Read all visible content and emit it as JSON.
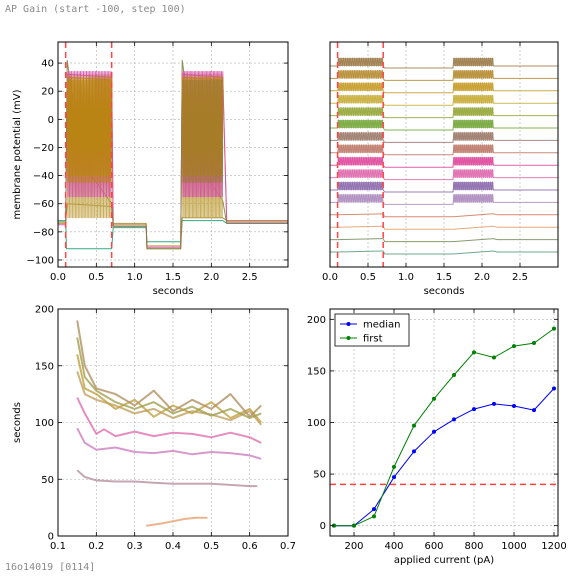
{
  "page_header": "AP Gain (start -100, step 100)",
  "page_footer": "16o14019 [0114]",
  "chart_data": [
    {
      "type": "line",
      "panel": "top-left",
      "xlabel": "seconds",
      "ylabel": "membrane potential (mV)",
      "xlim": [
        0,
        3.0
      ],
      "ylim": [
        -105,
        55
      ],
      "xticks": [
        0.0,
        0.5,
        1.0,
        1.5,
        2.0,
        2.5
      ],
      "xticklabels": [
        "0.0",
        "0.5",
        "1.0",
        "1.5",
        "2.0",
        "2.5"
      ],
      "yticks": [
        40,
        20,
        0,
        -20,
        -40,
        -60,
        -80,
        -100
      ],
      "yticklabels": [
        "40",
        "20",
        "0",
        "−20",
        "−40",
        "−60",
        "−80",
        "−100"
      ],
      "grid": true,
      "vlines": [
        0.1,
        0.7
      ],
      "vline_color": "#ff4444",
      "series": [
        {
          "color": "#1a9e77",
          "values": [
            [
              0,
              -72
            ],
            [
              0.1,
              -72
            ],
            [
              0.11,
              -92
            ],
            [
              0.7,
              -92
            ],
            [
              0.72,
              -77
            ],
            [
              1.15,
              -77
            ],
            [
              1.16,
              -87
            ],
            [
              1.6,
              -87
            ],
            [
              1.62,
              -72
            ],
            [
              2.15,
              -72
            ],
            [
              2.2,
              -74
            ],
            [
              3.0,
              -74
            ]
          ]
        },
        {
          "color": "#9a8a3a",
          "values": [
            [
              0,
              -73
            ],
            [
              0.1,
              -73
            ],
            [
              0.12,
              -60
            ],
            [
              0.7,
              -62
            ],
            [
              0.72,
              -74
            ],
            [
              1.15,
              -74
            ],
            [
              1.16,
              -92
            ],
            [
              1.6,
              -92
            ],
            [
              1.62,
              -70
            ],
            [
              2.15,
              -70
            ],
            [
              2.2,
              -72
            ],
            [
              3.0,
              -72
            ]
          ]
        },
        {
          "color": "#c08a2a",
          "values": [
            [
              0,
              -74
            ],
            [
              0.1,
              -74
            ],
            [
              0.12,
              30
            ],
            [
              0.7,
              28
            ],
            [
              0.72,
              -75
            ],
            [
              1.15,
              -75
            ],
            [
              1.16,
              -90
            ],
            [
              1.6,
              -90
            ],
            [
              1.62,
              30
            ],
            [
              2.15,
              28
            ],
            [
              2.2,
              -72
            ],
            [
              3.0,
              -72
            ]
          ]
        },
        {
          "color": "#d44fa8",
          "values": [
            [
              0,
              -75
            ],
            [
              0.1,
              -75
            ],
            [
              0.12,
              32
            ],
            [
              0.7,
              30
            ],
            [
              0.72,
              -76
            ],
            [
              1.15,
              -76
            ],
            [
              1.16,
              -91
            ],
            [
              1.6,
              -91
            ],
            [
              1.62,
              32
            ],
            [
              2.15,
              30
            ],
            [
              2.2,
              -73
            ],
            [
              3.0,
              -73
            ]
          ]
        },
        {
          "color": "#808040",
          "values": [
            [
              0,
              -73
            ],
            [
              0.1,
              -73
            ],
            [
              0.12,
              42
            ],
            [
              0.3,
              -30
            ],
            [
              0.7,
              -60
            ],
            [
              0.72,
              -76
            ],
            [
              1.15,
              -76
            ],
            [
              1.16,
              -92
            ],
            [
              1.6,
              -92
            ],
            [
              1.62,
              42
            ],
            [
              1.8,
              -30
            ],
            [
              2.15,
              -58
            ],
            [
              2.2,
              -74
            ],
            [
              3.0,
              -74
            ]
          ]
        }
      ]
    },
    {
      "type": "line",
      "panel": "top-right",
      "xlabel": "seconds",
      "xlim": [
        0,
        3.0
      ],
      "xticks": [
        0.0,
        0.5,
        1.0,
        1.5,
        2.0,
        2.5
      ],
      "xticklabels": [
        "0.0",
        "0.5",
        "1.0",
        "1.5",
        "2.0",
        "2.5"
      ],
      "grid": true,
      "vlines": [
        0.1,
        0.7
      ],
      "vline_color": "#ff4444",
      "trace_colors": [
        "#a08050",
        "#b8903a",
        "#c8a030",
        "#c9b040",
        "#9aaa40",
        "#7aaa40",
        "#a08070",
        "#c08070",
        "#e050a0",
        "#e070b0",
        "#9070b0",
        "#b090c0",
        "#d08060",
        "#e0a070",
        "#7a9060",
        "#60a080"
      ]
    },
    {
      "type": "line",
      "panel": "bottom-left",
      "ylabel": "seconds",
      "xlim": [
        0.1,
        0.7
      ],
      "ylim": [
        0,
        200
      ],
      "xticks": [
        0.1,
        0.2,
        0.3,
        0.4,
        0.5,
        0.6,
        0.7
      ],
      "xticklabels": [
        "0.1",
        "0.2",
        "0.3",
        "0.4",
        "0.5",
        "0.6",
        "0.7"
      ],
      "yticks": [
        0,
        50,
        100,
        150,
        200
      ],
      "yticklabels": [
        "0",
        "50",
        "100",
        "150",
        "200"
      ],
      "grid": true,
      "series": [
        {
          "color": "#e8a070",
          "values": [
            [
              0.33,
              9
            ],
            [
              0.37,
              11
            ],
            [
              0.4,
              13
            ],
            [
              0.43,
              15
            ],
            [
              0.46,
              16
            ],
            [
              0.49,
              16
            ]
          ]
        },
        {
          "color": "#b890a0",
          "values": [
            [
              0.15,
              58
            ],
            [
              0.17,
              52
            ],
            [
              0.2,
              49
            ],
            [
              0.25,
              48
            ],
            [
              0.3,
              48
            ],
            [
              0.35,
              47
            ],
            [
              0.4,
              46
            ],
            [
              0.45,
              46
            ],
            [
              0.5,
              46
            ],
            [
              0.55,
              45
            ],
            [
              0.6,
              44
            ],
            [
              0.62,
              44
            ]
          ]
        },
        {
          "color": "#cc80c0",
          "values": [
            [
              0.15,
              95
            ],
            [
              0.17,
              82
            ],
            [
              0.2,
              76
            ],
            [
              0.25,
              78
            ],
            [
              0.3,
              74
            ],
            [
              0.35,
              73
            ],
            [
              0.4,
              75
            ],
            [
              0.45,
              72
            ],
            [
              0.5,
              74
            ],
            [
              0.55,
              73
            ],
            [
              0.6,
              71
            ],
            [
              0.63,
              68
            ]
          ]
        },
        {
          "color": "#e070b0",
          "values": [
            [
              0.15,
              122
            ],
            [
              0.17,
              108
            ],
            [
              0.2,
              90
            ],
            [
              0.22,
              94
            ],
            [
              0.25,
              88
            ],
            [
              0.3,
              92
            ],
            [
              0.35,
              88
            ],
            [
              0.4,
              91
            ],
            [
              0.45,
              90
            ],
            [
              0.5,
              87
            ],
            [
              0.55,
              91
            ],
            [
              0.6,
              87
            ],
            [
              0.63,
              82
            ]
          ]
        },
        {
          "color": "#c0a060",
          "values": [
            [
              0.15,
              145
            ],
            [
              0.17,
              125
            ],
            [
              0.2,
              120
            ],
            [
              0.25,
              115
            ],
            [
              0.3,
              108
            ],
            [
              0.35,
              112
            ],
            [
              0.4,
              104
            ],
            [
              0.45,
              110
            ],
            [
              0.5,
              107
            ],
            [
              0.55,
              102
            ],
            [
              0.6,
              110
            ],
            [
              0.63,
              98
            ]
          ]
        },
        {
          "color": "#c0a040",
          "values": [
            [
              0.15,
              160
            ],
            [
              0.17,
              130
            ],
            [
              0.2,
              125
            ],
            [
              0.25,
              112
            ],
            [
              0.3,
              120
            ],
            [
              0.35,
              105
            ],
            [
              0.4,
              115
            ],
            [
              0.45,
              108
            ],
            [
              0.5,
              118
            ],
            [
              0.55,
              104
            ],
            [
              0.6,
              112
            ],
            [
              0.63,
              100
            ]
          ]
        },
        {
          "color": "#b09060",
          "values": [
            [
              0.15,
              190
            ],
            [
              0.17,
              150
            ],
            [
              0.2,
              130
            ],
            [
              0.25,
              125
            ],
            [
              0.3,
              115
            ],
            [
              0.35,
              128
            ],
            [
              0.4,
              110
            ],
            [
              0.45,
              120
            ],
            [
              0.5,
              112
            ],
            [
              0.55,
              125
            ],
            [
              0.6,
              105
            ],
            [
              0.63,
              115
            ]
          ]
        },
        {
          "color": "#a0a050",
          "values": [
            [
              0.15,
              175
            ],
            [
              0.17,
              140
            ],
            [
              0.2,
              128
            ],
            [
              0.25,
              118
            ],
            [
              0.3,
              112
            ],
            [
              0.35,
              118
            ],
            [
              0.4,
              108
            ],
            [
              0.45,
              114
            ],
            [
              0.5,
              106
            ],
            [
              0.55,
              112
            ],
            [
              0.6,
              104
            ],
            [
              0.63,
              108
            ]
          ]
        }
      ]
    },
    {
      "type": "line",
      "panel": "bottom-right",
      "xlabel": "applied current (pA)",
      "xlim": [
        80,
        1220
      ],
      "ylim": [
        -10,
        210
      ],
      "xticks": [
        200,
        400,
        600,
        800,
        1000,
        1200
      ],
      "xticklabels": [
        "200",
        "400",
        "600",
        "800",
        "1000",
        "1200"
      ],
      "yticks": [
        0,
        50,
        100,
        150,
        200
      ],
      "yticklabels": [
        "0",
        "50",
        "100",
        "150",
        "200"
      ],
      "grid": true,
      "hline": 40,
      "hline_color": "#ff4444",
      "legend_position": "top-left",
      "x": [
        100,
        200,
        300,
        400,
        500,
        600,
        700,
        800,
        900,
        1000,
        1100,
        1200
      ],
      "series": [
        {
          "name": "median",
          "color": "#0000ff",
          "values": [
            0,
            0,
            16,
            47,
            72,
            91,
            103,
            113,
            118,
            116,
            112,
            133
          ]
        },
        {
          "name": "first",
          "color": "#008000",
          "values": [
            0,
            0,
            9,
            57,
            97,
            123,
            146,
            168,
            163,
            174,
            177,
            191
          ]
        }
      ]
    }
  ]
}
